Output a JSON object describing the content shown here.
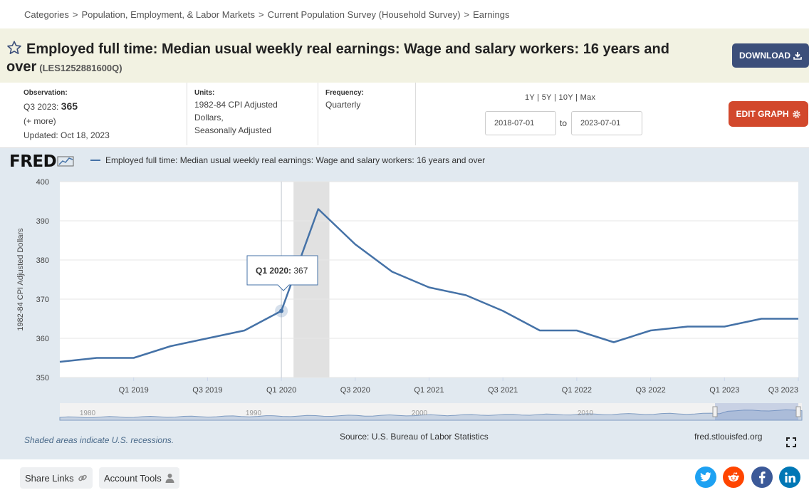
{
  "breadcrumb": {
    "items": [
      "Categories",
      "Population, Employment, & Labor Markets",
      "Current Population Survey (Household Survey)",
      "Earnings"
    ],
    "separator": ">"
  },
  "header": {
    "title": "Employed full time: Median usual weekly real earnings: Wage and salary workers: 16 years and over",
    "series_id": "(LES1252881600Q)",
    "download_label": "DOWNLOAD"
  },
  "meta": {
    "observation_label": "Observation:",
    "observation_period": "Q3 2023:",
    "observation_value": "365",
    "more": "(+ more)",
    "updated": "Updated: Oct 18, 2023",
    "units_label": "Units:",
    "units_lines": [
      "1982-84 CPI Adjusted",
      "Dollars,",
      "Seasonally Adjusted"
    ],
    "frequency_label": "Frequency:",
    "frequency": "Quarterly",
    "ranges": [
      "1Y",
      "5Y",
      "10Y",
      "Max"
    ],
    "range_sep": "|",
    "start_date": "2018-07-01",
    "to_label": "to",
    "end_date": "2023-07-01",
    "edit_label": "EDIT GRAPH"
  },
  "graph": {
    "logo": "FRED",
    "legend_label": "Employed full time: Median usual weekly real earnings: Wage and salary workers: 16 years and over",
    "tooltip_period": "Q1 2020:",
    "tooltip_value": "367",
    "navigator_labels": [
      "1980",
      "1990",
      "2000",
      "2010"
    ],
    "recession_note": "Shaded areas indicate U.S. recessions.",
    "source": "Source: U.S. Bureau of Labor Statistics",
    "url": "fred.stlouisfed.org"
  },
  "chart_data": {
    "type": "line",
    "x": [
      "Q3 2018",
      "Q4 2018",
      "Q1 2019",
      "Q2 2019",
      "Q3 2019",
      "Q4 2019",
      "Q1 2020",
      "Q2 2020",
      "Q3 2020",
      "Q4 2020",
      "Q1 2021",
      "Q2 2021",
      "Q3 2021",
      "Q4 2021",
      "Q1 2022",
      "Q2 2022",
      "Q3 2022",
      "Q4 2022",
      "Q1 2023",
      "Q2 2023",
      "Q3 2023"
    ],
    "series": [
      {
        "name": "Employed full time: Median usual weekly real earnings: Wage and salary workers: 16 years and over",
        "values": [
          354,
          355,
          355,
          358,
          360,
          362,
          367,
          393,
          384,
          377,
          373,
          371,
          367,
          362,
          362,
          359,
          362,
          363,
          363,
          365,
          365
        ],
        "color": "#4572a7"
      }
    ],
    "x_tick_labels": [
      "Q1 2019",
      "Q3 2019",
      "Q1 2020",
      "Q3 2020",
      "Q1 2021",
      "Q3 2021",
      "Q1 2022",
      "Q3 2022",
      "Q1 2023",
      "Q3 2023"
    ],
    "y_ticks": [
      350,
      360,
      370,
      380,
      390,
      400
    ],
    "ylim": [
      350,
      400
    ],
    "ylabel": "1982-84 CPI Adjusted Dollars",
    "recession_shading": [
      "Q1 2020",
      "Q2 2020"
    ],
    "grid": true
  },
  "footer": {
    "share_label": "Share Links",
    "account_label": "Account Tools"
  },
  "colors": {
    "line": "#4572a7",
    "download": "#3c4f7a",
    "edit": "#d2482c",
    "twitter": "#1da1f2",
    "reddit": "#ff4500",
    "facebook": "#3b5998",
    "linkedin": "#0077b5"
  }
}
